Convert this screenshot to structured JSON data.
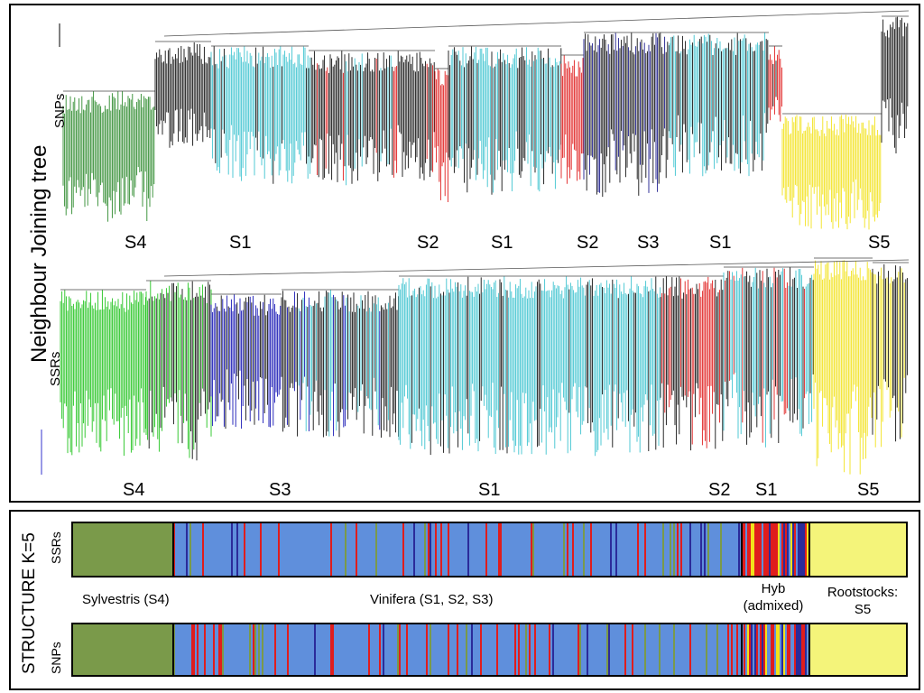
{
  "figure": {
    "top_title": "Neighbour  Joining tree",
    "snp_row_label": "SNPs",
    "ssr_row_label": "SSRs",
    "snp_tree_clades": [
      "S4",
      "S1",
      "S2",
      "S1",
      "S2",
      "S3",
      "S1",
      "S5"
    ],
    "ssr_tree_clades": [
      "S4",
      "S3",
      "S1",
      "S2",
      "S1",
      "S5"
    ],
    "structure_title": "STRUCTURE K=5",
    "structure_ssr_label": "SSRs",
    "structure_snp_label": "SNPs",
    "groups": {
      "sylvestris": "Sylvestris (S4)",
      "vinifera": "Vinifera (S1, S2, S3)",
      "hyb_line1": "Hyb",
      "hyb_line2": "(admixed)",
      "rootstocks_line1": "Rootstocks:",
      "rootstocks_line2": "S5"
    }
  },
  "colors": {
    "green": "#2e8b2e",
    "cyan": "#3fc4d0",
    "black": "#111111",
    "red": "#e01d1d",
    "navy": "#1a1a8c",
    "yellow": "#f2e21a",
    "bright_green": "#22c41f",
    "blue": "#1414b4",
    "struct_olive": "#7a9a4a",
    "struct_blue": "#5f8fdc",
    "struct_yellow": "#f4f47a"
  }
}
